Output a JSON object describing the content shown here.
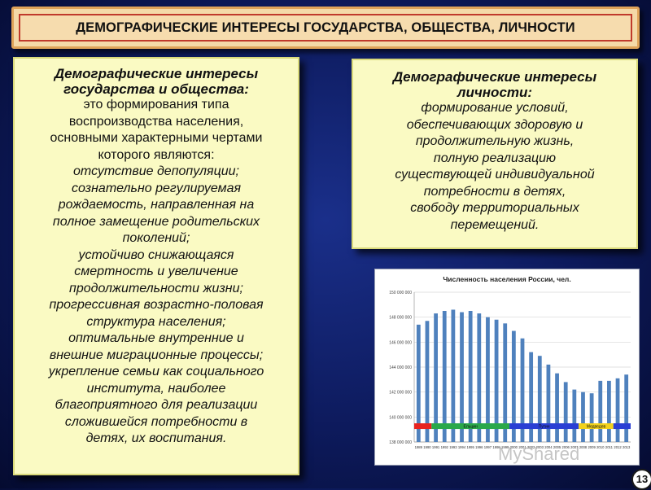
{
  "title": "ДЕМОГРАФИЧЕСКИЕ ИНТЕРЕСЫ ГОСУДАРСТВА, ОБЩЕСТВА, ЛИЧНОСТИ",
  "left_panel": {
    "heading": [
      "Демографические интересы",
      "государства и общества:"
    ],
    "plain": [
      "это формирования типа",
      "воспроизводства населения,",
      "основными характерными чертами",
      "которого являются:"
    ],
    "italic": [
      "отсутствие депопуляции;",
      "сознательно регулируемая",
      "рождаемость, направленная на",
      "полное замещение родительских",
      "поколений;",
      "устойчиво снижающаяся",
      "смертность и увеличение",
      "продолжительности жизни;",
      "прогрессивная возрастно-половая",
      "структура населения;",
      "оптимальные внутренние и",
      "внешние миграционные процессы;",
      "укрепление семьи как социального",
      "института, наиболее",
      "благоприятного для реализации",
      "сложившейся потребности в",
      "детях, их воспитания."
    ]
  },
  "right_panel": {
    "heading": [
      "Демографические интересы",
      "личности:"
    ],
    "italic": [
      "формирование условий,",
      "обеспечивающих здоровую и",
      "продолжительную жизнь,",
      "полную реализацию",
      "существующей индивидуальной",
      "потребности в детях,",
      "свободу территориальных",
      "перемещений."
    ]
  },
  "chart_data": {
    "type": "bar",
    "title": "Численность населения России, чел.",
    "categories": [
      "1989",
      "1990",
      "1991",
      "1992",
      "1993",
      "1994",
      "1995",
      "1996",
      "1997",
      "1998",
      "1999",
      "2000",
      "2001",
      "2002",
      "2003",
      "2004",
      "2005",
      "2006",
      "2007",
      "2008",
      "2009",
      "2010",
      "2011",
      "2012",
      "2013"
    ],
    "values": [
      147400000,
      147700000,
      148300000,
      148500000,
      148600000,
      148400000,
      148500000,
      148300000,
      148000000,
      147800000,
      147500000,
      146900000,
      146300000,
      145200000,
      144900000,
      144200000,
      143500000,
      142800000,
      142200000,
      142000000,
      141900000,
      142900000,
      142900000,
      143100000,
      143400000
    ],
    "ylim": [
      138000000,
      150000000
    ],
    "yticks": [
      "138 000 000",
      "140 000 000",
      "142 000 000",
      "144 000 000",
      "146 000 000",
      "148 000 000",
      "150 000 000"
    ],
    "bar_color": "#4f81bd",
    "periods": [
      {
        "label": "",
        "color": "#e8231f",
        "from": 0,
        "to": 2
      },
      {
        "label": "Ельцин",
        "color": "#2aa84a",
        "from": 2,
        "to": 11
      },
      {
        "label": "Путин",
        "color": "#2a3fd4",
        "from": 11,
        "to": 19
      },
      {
        "label": "Медведев",
        "color": "#f2d21c",
        "from": 19,
        "to": 23
      },
      {
        "label": "",
        "color": "#2a3fd4",
        "from": 23,
        "to": 25
      }
    ],
    "grid": true
  },
  "page_number": "13",
  "watermark": "MyShared"
}
